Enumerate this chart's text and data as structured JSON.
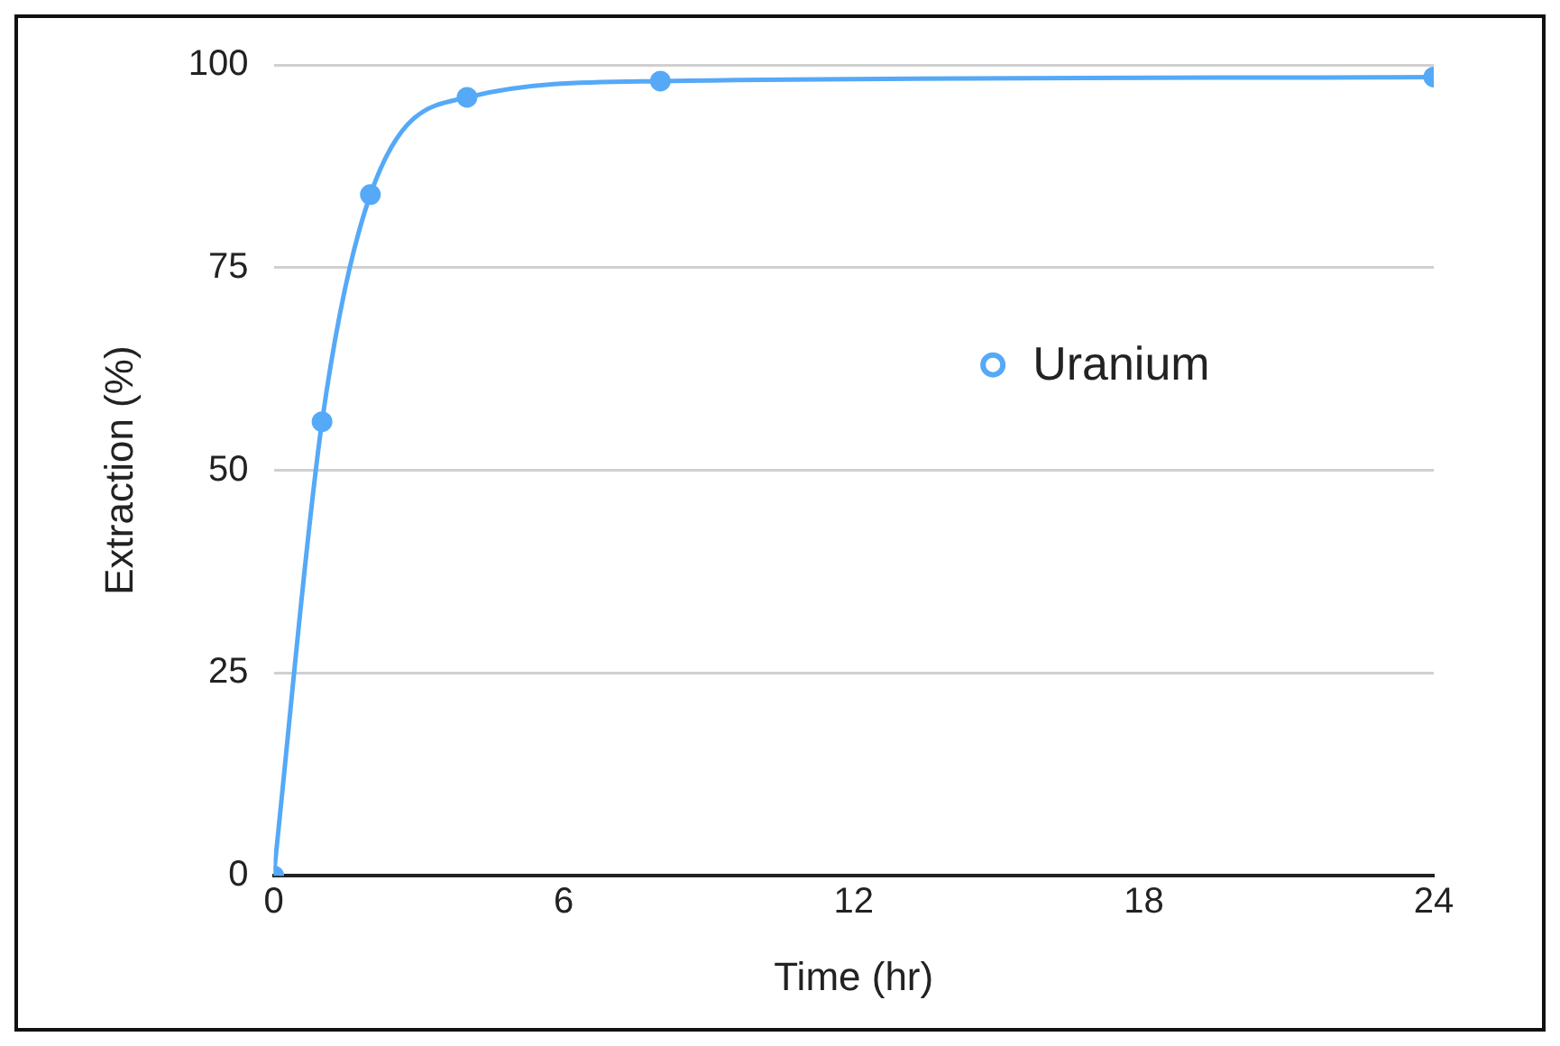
{
  "chart_data": {
    "type": "line",
    "xlabel": "Time (hr)",
    "ylabel": "Extraction (%)",
    "x": [
      0,
      1,
      2,
      4,
      8,
      24
    ],
    "series": [
      {
        "name": "Uranium",
        "color": "#55a9f7",
        "values": [
          0,
          56,
          84,
          96,
          98,
          98.5
        ]
      }
    ],
    "xlim": [
      0,
      24
    ],
    "xticks": [
      0,
      6,
      12,
      18,
      24
    ],
    "ylim": [
      0,
      100
    ],
    "yticks": [
      0,
      25,
      50,
      75,
      100
    ],
    "grid": "y",
    "legend": "right",
    "marker": "circle",
    "line_style": "solid"
  }
}
